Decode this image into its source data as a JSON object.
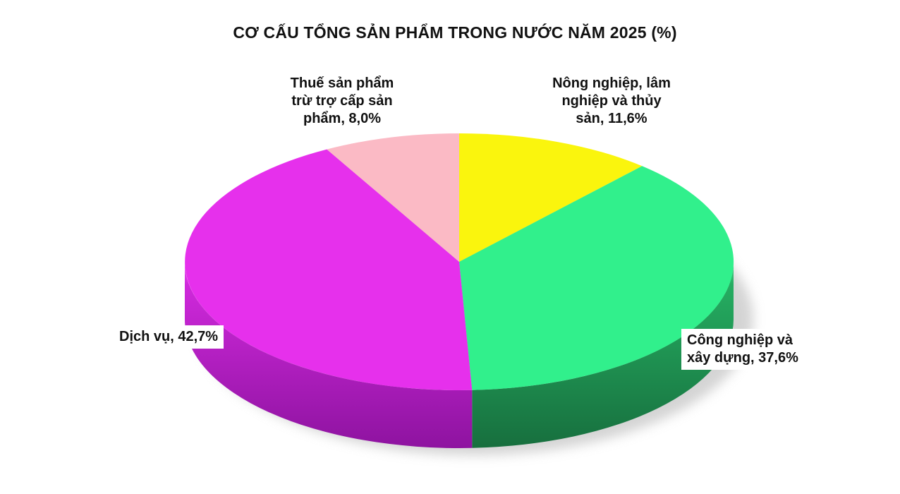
{
  "chart_data": {
    "type": "pie",
    "style": "3d",
    "title": "CƠ CẤU TỔNG SẢN PHẨM TRONG NƯỚC NĂM 2025 (%)",
    "unit": "%",
    "start_angle_deg": 0,
    "direction": "clockwise",
    "legend_position": "none",
    "slices": [
      {
        "id": "nong-nghiep-lam-nghiep-va-thuy-san",
        "label": "Nông nghiệp, lâm nghiệp và thủy sản",
        "value": 11.6,
        "display": "Nông nghiệp, lâm nghiệp và thủy sản, 11,6%",
        "color_top": "#FAF50D",
        "side_hi": "#f0e93c",
        "side": "#d5cc08",
        "side_dark": "#a29b04"
      },
      {
        "id": "cong-nghiep-va-xay-dung",
        "label": "Công nghiệp và xây dựng",
        "value": 37.6,
        "display": "Công nghiệp và xây dựng, 37,6%",
        "color_top": "#31F08C",
        "side_hi": "#45d88a",
        "side": "#25ad61",
        "side_dark": "#176f3e"
      },
      {
        "id": "dich-vu",
        "label": "Dịch vụ",
        "value": 42.7,
        "display": "Dịch vụ, 42,7%",
        "color_top": "#E630EC",
        "side_hi": "#f055f6",
        "side": "#cf29db",
        "side_dark": "#8e13a0"
      },
      {
        "id": "thue-san-pham-tru-tro-cap-san-pham",
        "label": "Thuế sản phẩm trừ trợ cấp sản phẩm",
        "value": 8.0,
        "display": "Thuế sản phẩm trừ trợ cấp sản phẩm, 8,0%",
        "color_top": "#FBBAC5",
        "side_hi": "#f8c6cf",
        "side": "#e09aa8",
        "side_dark": "#b3707e"
      }
    ]
  },
  "labels": {
    "thue": {
      "lines": [
        "Thuế sản phẩm",
        "trừ trợ cấp sản",
        "phẩm, 8,0%"
      ]
    },
    "nong": {
      "lines": [
        "Nông nghiệp, lâm",
        "nghiệp và thủy",
        "sản, 11,6%"
      ]
    },
    "cong": {
      "lines": [
        "Công nghiệp và",
        "xây dựng, 37,6%"
      ]
    },
    "dich": {
      "lines": [
        "Dịch vụ, 42,7%"
      ]
    }
  }
}
